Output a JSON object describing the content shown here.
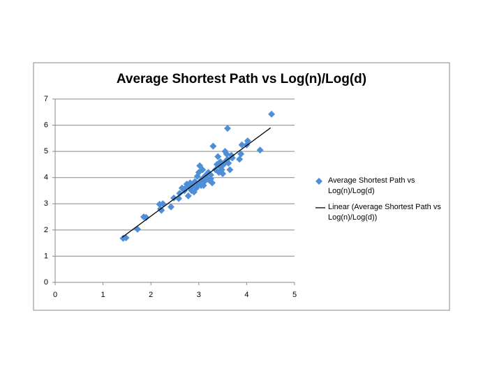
{
  "chart_data": {
    "type": "scatter",
    "title": "Average Shortest Path vs Log(n)/Log(d)",
    "series": [
      {
        "name": "Average Shortest Path vs Log(n)/Log(d)",
        "color": "#4f8fd8",
        "x": [
          1.42,
          1.48,
          1.72,
          1.85,
          1.9,
          2.18,
          2.2,
          2.22,
          2.25,
          2.42,
          2.48,
          2.58,
          2.6,
          2.7,
          2.72,
          2.75,
          2.78,
          2.8,
          2.82,
          2.85,
          2.88,
          2.9,
          2.92,
          2.95,
          2.97,
          3.0,
          3.0,
          3.02,
          3.05,
          3.05,
          3.08,
          3.1,
          3.12,
          3.15,
          3.18,
          3.2,
          3.22,
          3.25,
          3.28,
          3.3,
          3.35,
          3.38,
          3.4,
          3.42,
          3.45,
          3.48,
          3.5,
          3.52,
          3.55,
          3.55,
          3.58,
          3.6,
          3.6,
          3.62,
          3.65,
          3.68,
          3.85,
          3.88,
          3.9,
          4.0,
          4.02,
          4.28,
          4.52,
          3.7,
          3.45,
          3.25,
          3.1,
          2.65
        ],
        "values": [
          1.68,
          1.7,
          2.03,
          2.5,
          2.48,
          2.98,
          2.8,
          2.75,
          3.0,
          2.88,
          3.22,
          3.2,
          3.4,
          3.5,
          3.6,
          3.75,
          3.3,
          3.62,
          3.8,
          3.5,
          3.7,
          3.45,
          3.85,
          3.6,
          4.05,
          4.2,
          3.75,
          4.45,
          3.9,
          3.7,
          4.3,
          4.0,
          3.85,
          4.1,
          3.95,
          4.2,
          3.9,
          4.1,
          3.8,
          5.2,
          4.3,
          4.5,
          4.8,
          4.2,
          4.4,
          4.3,
          4.15,
          4.5,
          5.0,
          4.6,
          4.9,
          5.88,
          4.7,
          4.55,
          4.3,
          4.85,
          4.7,
          4.9,
          5.25,
          5.25,
          5.4,
          5.05,
          6.42,
          4.75,
          4.6,
          3.95,
          3.7,
          3.6
        ]
      }
    ],
    "trendline": {
      "name": "Linear (Average Shortest Path vs Log(n)/Log(d))",
      "color": "#000000",
      "x": [
        1.4,
        4.5
      ],
      "values": [
        1.72,
        5.9
      ]
    },
    "xlim": [
      0,
      5
    ],
    "xticks": [
      0,
      1,
      2,
      3,
      4,
      5
    ],
    "ylim": [
      0,
      7
    ],
    "yticks": [
      0,
      1,
      2,
      3,
      4,
      5,
      6,
      7
    ],
    "grid": true
  }
}
